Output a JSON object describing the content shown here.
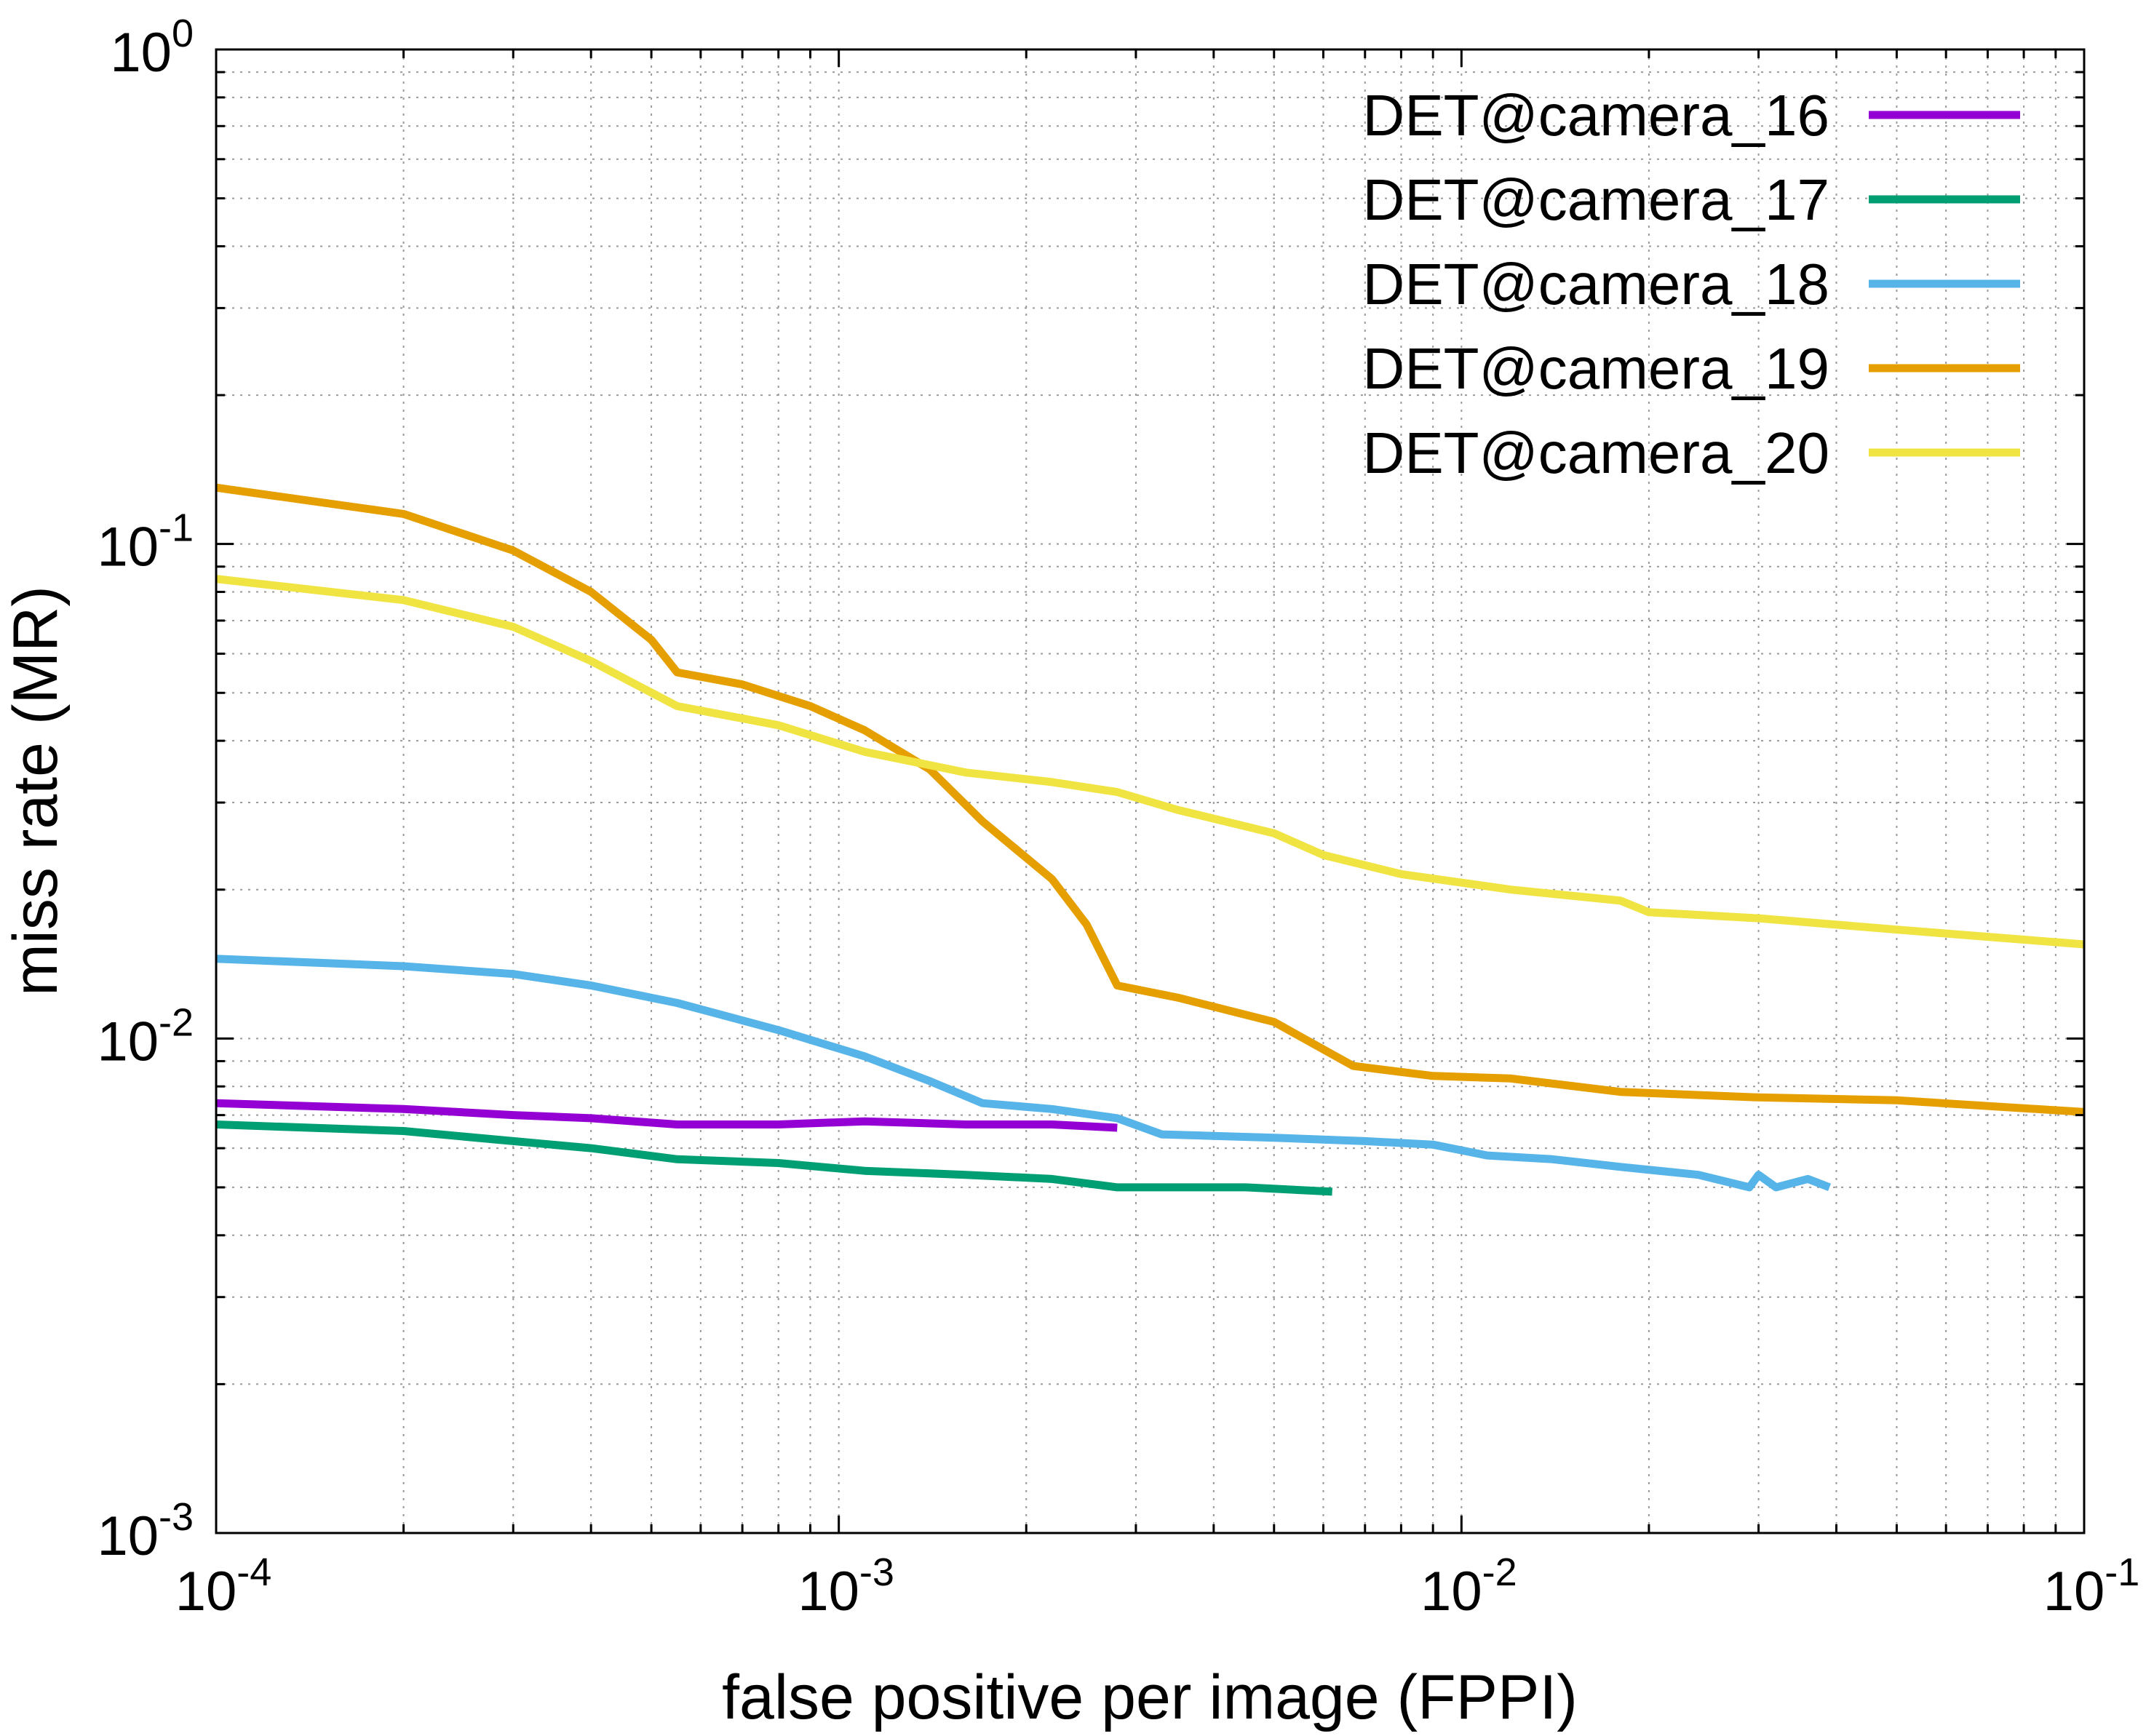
{
  "chart_data": {
    "type": "line",
    "title": "",
    "xlabel": "false positive per image (FPPI)",
    "ylabel": "miss rate (MR)",
    "xscale": "log",
    "yscale": "log",
    "xlim": [
      0.0001,
      0.1
    ],
    "ylim": [
      0.001,
      1
    ],
    "grid": true,
    "legend_position": "top-right",
    "x_ticks": [
      {
        "value": 0.0001,
        "base": "10",
        "exp": "-4"
      },
      {
        "value": 0.001,
        "base": "10",
        "exp": "-3"
      },
      {
        "value": 0.01,
        "base": "10",
        "exp": "-2"
      },
      {
        "value": 0.1,
        "base": "10",
        "exp": "-1"
      }
    ],
    "y_ticks": [
      {
        "value": 0.001,
        "base": "10",
        "exp": "-3"
      },
      {
        "value": 0.01,
        "base": "10",
        "exp": "-2"
      },
      {
        "value": 0.1,
        "base": "10",
        "exp": "-1"
      },
      {
        "value": 1,
        "base": "10",
        "exp": "0"
      }
    ],
    "series": [
      {
        "name": "DET@camera_16",
        "color": "#9400d3",
        "points": [
          [
            0.0001,
            0.0074
          ],
          [
            0.0002,
            0.0072
          ],
          [
            0.0003,
            0.007
          ],
          [
            0.0004,
            0.0069
          ],
          [
            0.00055,
            0.0067
          ],
          [
            0.0008,
            0.0067
          ],
          [
            0.0011,
            0.0068
          ],
          [
            0.0016,
            0.0067
          ],
          [
            0.0022,
            0.0067
          ],
          [
            0.0028,
            0.0066
          ]
        ]
      },
      {
        "name": "DET@camera_17",
        "color": "#009e73",
        "points": [
          [
            0.0001,
            0.0067
          ],
          [
            0.0002,
            0.0065
          ],
          [
            0.0003,
            0.0062
          ],
          [
            0.0004,
            0.006
          ],
          [
            0.00055,
            0.0057
          ],
          [
            0.0008,
            0.0056
          ],
          [
            0.0011,
            0.0054
          ],
          [
            0.0016,
            0.0053
          ],
          [
            0.0022,
            0.0052
          ],
          [
            0.0028,
            0.005
          ],
          [
            0.0035,
            0.005
          ],
          [
            0.0045,
            0.005
          ],
          [
            0.0062,
            0.0049
          ]
        ]
      },
      {
        "name": "DET@camera_18",
        "color": "#56b4e9",
        "points": [
          [
            0.0001,
            0.0145
          ],
          [
            0.0002,
            0.014
          ],
          [
            0.0003,
            0.0135
          ],
          [
            0.0004,
            0.0128
          ],
          [
            0.00055,
            0.0118
          ],
          [
            0.0008,
            0.0104
          ],
          [
            0.0011,
            0.0092
          ],
          [
            0.0014,
            0.0082
          ],
          [
            0.0017,
            0.0074
          ],
          [
            0.0022,
            0.0072
          ],
          [
            0.0028,
            0.0069
          ],
          [
            0.0033,
            0.0064
          ],
          [
            0.005,
            0.0063
          ],
          [
            0.007,
            0.0062
          ],
          [
            0.009,
            0.0061
          ],
          [
            0.011,
            0.0058
          ],
          [
            0.014,
            0.0057
          ],
          [
            0.018,
            0.0055
          ],
          [
            0.024,
            0.0053
          ],
          [
            0.029,
            0.005
          ],
          [
            0.03,
            0.0053
          ],
          [
            0.032,
            0.005
          ],
          [
            0.036,
            0.0052
          ],
          [
            0.039,
            0.005
          ]
        ]
      },
      {
        "name": "DET@camera_19",
        "color": "#e69f00",
        "points": [
          [
            0.0001,
            0.13
          ],
          [
            0.0002,
            0.115
          ],
          [
            0.0003,
            0.097
          ],
          [
            0.0004,
            0.08
          ],
          [
            0.0005,
            0.064
          ],
          [
            0.00055,
            0.055
          ],
          [
            0.0007,
            0.052
          ],
          [
            0.0009,
            0.047
          ],
          [
            0.0011,
            0.042
          ],
          [
            0.0014,
            0.035
          ],
          [
            0.0017,
            0.0275
          ],
          [
            0.0022,
            0.021
          ],
          [
            0.0025,
            0.017
          ],
          [
            0.0028,
            0.0128
          ],
          [
            0.0035,
            0.0121
          ],
          [
            0.005,
            0.0108
          ],
          [
            0.0067,
            0.0088
          ],
          [
            0.009,
            0.0084
          ],
          [
            0.012,
            0.0083
          ],
          [
            0.018,
            0.0078
          ],
          [
            0.03,
            0.0076
          ],
          [
            0.05,
            0.0075
          ],
          [
            0.1,
            0.0071
          ]
        ]
      },
      {
        "name": "DET@camera_20",
        "color": "#f0e442",
        "points": [
          [
            0.0001,
            0.085
          ],
          [
            0.0002,
            0.077
          ],
          [
            0.0003,
            0.068
          ],
          [
            0.0004,
            0.058
          ],
          [
            0.00055,
            0.047
          ],
          [
            0.0008,
            0.043
          ],
          [
            0.0011,
            0.038
          ],
          [
            0.0016,
            0.0345
          ],
          [
            0.0022,
            0.033
          ],
          [
            0.0028,
            0.0315
          ],
          [
            0.0035,
            0.029
          ],
          [
            0.005,
            0.026
          ],
          [
            0.006,
            0.0235
          ],
          [
            0.008,
            0.0215
          ],
          [
            0.012,
            0.02
          ],
          [
            0.018,
            0.019
          ],
          [
            0.02,
            0.018
          ],
          [
            0.03,
            0.0175
          ],
          [
            0.05,
            0.0166
          ],
          [
            0.1,
            0.0155
          ]
        ]
      }
    ]
  }
}
